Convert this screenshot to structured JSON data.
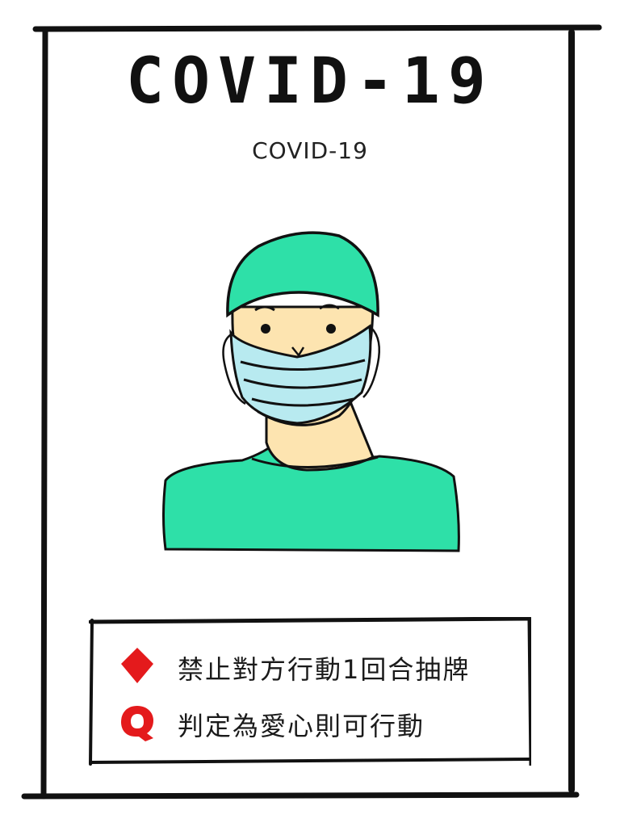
{
  "card": {
    "title": "COVID-19",
    "subtitle": "COVID-19"
  },
  "illustration": {
    "subject": "person-wearing-surgical-cap-and-mask",
    "colors": {
      "scrubs": "#2ee0a8",
      "mask": "#b8eaf0",
      "skin": "#fde4b0",
      "outline": "#111111"
    }
  },
  "rules": [
    {
      "icon": "diamond-icon",
      "color": "#e41a1c",
      "text": "禁止對方行動1回合抽牌"
    },
    {
      "icon": "q-icon",
      "color": "#e41a1c",
      "text": "判定為愛心則可行動"
    }
  ]
}
